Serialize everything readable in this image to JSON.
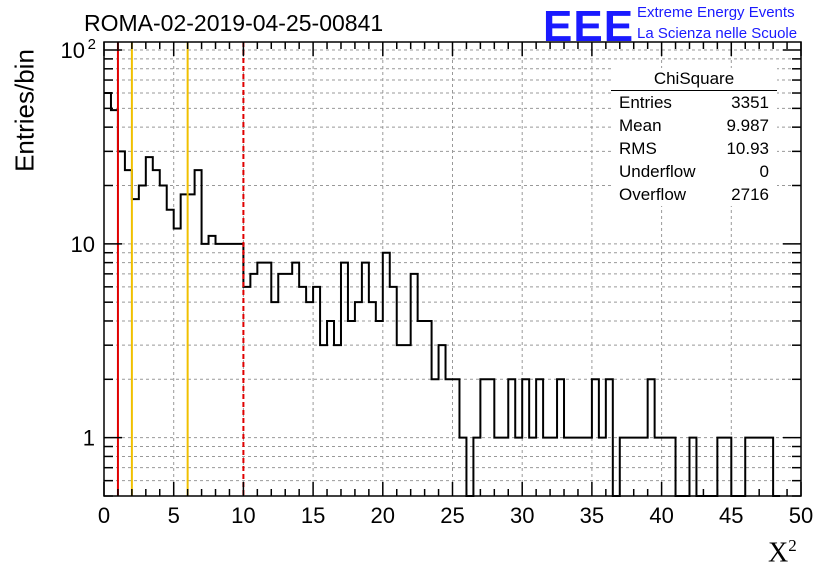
{
  "title": "ROMA-02-2019-04-25-00841",
  "logo": {
    "mark": "EEE",
    "line1": "Extreme Energy Events",
    "line2": "La Scienza nelle Scuole",
    "color": "#1a1aff"
  },
  "stats_box": {
    "title": "ChiSquare",
    "rows": [
      {
        "label": "Entries",
        "value": "3351"
      },
      {
        "label": "Mean",
        "value": "9.987"
      },
      {
        "label": "RMS",
        "value": "10.93"
      },
      {
        "label": "Underflow",
        "value": "0"
      },
      {
        "label": "Overflow",
        "value": "2716"
      }
    ]
  },
  "chart_data": {
    "type": "histogram",
    "title": "ROMA-02-2019-04-25-00841",
    "xlabel": "X",
    "xlabel_sup": "2",
    "ylabel": "Entries/bin",
    "xlim": [
      0,
      50
    ],
    "ylim": [
      0.5,
      110
    ],
    "y_scale": "log",
    "grid": true,
    "x_ticks": [
      0,
      5,
      10,
      15,
      20,
      25,
      30,
      35,
      40,
      45,
      50
    ],
    "y_tick_labels": [
      {
        "value": 1,
        "label": "1"
      },
      {
        "value": 10,
        "label": "10"
      },
      {
        "value": 100,
        "label": "10",
        "sup": "2"
      }
    ],
    "bin_width": 0.5,
    "bin_start": 0,
    "values": [
      60,
      49,
      30,
      24,
      17,
      20,
      28,
      24,
      20,
      15,
      12,
      18,
      18,
      24,
      10,
      11,
      10,
      10,
      10,
      10,
      6,
      7,
      8,
      8,
      5,
      7,
      7,
      8,
      6,
      5,
      6,
      3,
      4,
      3,
      8,
      4,
      5,
      8,
      5,
      4,
      9,
      6,
      3,
      3,
      7,
      4,
      4,
      2,
      3,
      2,
      2,
      1,
      0,
      1,
      2,
      2,
      1,
      1,
      2,
      1,
      2,
      1,
      2,
      1,
      1,
      2,
      1,
      1,
      1,
      1,
      2,
      1,
      2,
      0,
      1,
      1,
      1,
      1,
      2,
      1,
      1,
      1,
      0,
      0,
      1,
      0,
      0,
      0,
      1,
      1,
      0,
      0,
      1,
      1,
      1,
      1,
      0
    ],
    "vertical_lines": [
      {
        "x": 1,
        "color": "#e00000",
        "style": "solid"
      },
      {
        "x": 2,
        "color": "#f0c000",
        "style": "solid"
      },
      {
        "x": 6,
        "color": "#f0c000",
        "style": "solid"
      },
      {
        "x": 10,
        "color": "#e00000",
        "style": "dashed"
      }
    ]
  }
}
